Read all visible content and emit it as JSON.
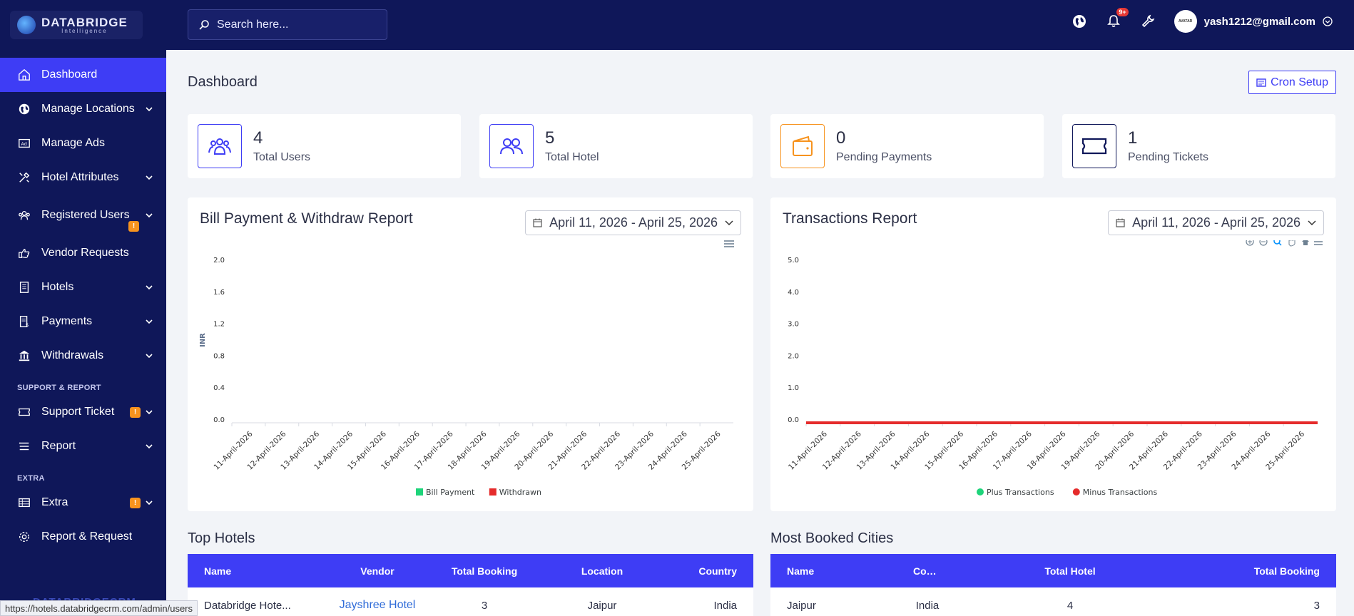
{
  "brand": {
    "name": "DATABRIDGE",
    "tagline": "Intelligence",
    "footer": "DATABRIDGECRM"
  },
  "search": {
    "placeholder": "Search here..."
  },
  "topbar": {
    "notification_badge": "9+",
    "user_email": "yash1212@gmail.com",
    "avatar_text": "AVATAR"
  },
  "sidebar": {
    "items": [
      {
        "label": "Dashboard",
        "icon": "home-icon",
        "active": true,
        "chevron": false
      },
      {
        "label": "Manage Locations",
        "icon": "globe-icon",
        "chevron": true
      },
      {
        "label": "Manage Ads",
        "icon": "ad-icon",
        "chevron": false
      },
      {
        "label": "Hotel Attributes",
        "icon": "tools-icon",
        "chevron": true
      },
      {
        "label": "Registered Users",
        "icon": "users-icon",
        "chevron": true,
        "badge": "!"
      },
      {
        "label": "Vendor Requests",
        "icon": "hand-icon",
        "chevron": false
      },
      {
        "label": "Hotels",
        "icon": "building-icon",
        "chevron": true
      },
      {
        "label": "Payments",
        "icon": "receipt-icon",
        "chevron": true
      },
      {
        "label": "Withdrawals",
        "icon": "bank-icon",
        "chevron": true
      }
    ],
    "section_support": "SUPPORT & REPORT",
    "support_items": [
      {
        "label": "Support Ticket",
        "icon": "ticket-icon",
        "chevron": true,
        "badge": "!"
      },
      {
        "label": "Report",
        "icon": "list-icon",
        "chevron": true
      }
    ],
    "section_extra": "EXTRA",
    "extra_items": [
      {
        "label": "Extra",
        "icon": "table-icon",
        "chevron": true,
        "badge": "!"
      },
      {
        "label": "Report & Request",
        "icon": "gear-icon",
        "chevron": false
      }
    ]
  },
  "page": {
    "title": "Dashboard",
    "cron_label": "Cron Setup"
  },
  "stats": [
    {
      "value": "4",
      "label": "Total Users",
      "color": "#3e3df5",
      "icon": "users-group-icon"
    },
    {
      "value": "5",
      "label": "Total Hotel",
      "color": "#3e3df5",
      "icon": "users-pair-icon"
    },
    {
      "value": "0",
      "label": "Pending Payments",
      "color": "#f7931e",
      "icon": "wallet-icon"
    },
    {
      "value": "1",
      "label": "Pending Tickets",
      "color": "#0f1759",
      "icon": "ticket-icon"
    }
  ],
  "bill_report": {
    "title": "Bill Payment & Withdraw Report",
    "date_range": "April 11, 2026 - April 25, 2026"
  },
  "tx_report": {
    "title": "Transactions Report",
    "date_range": "April 11, 2026 - April 25, 2026"
  },
  "chart_data": [
    {
      "type": "bar",
      "title": "Bill Payment & Withdraw Report",
      "ylabel": "INR",
      "ylim": [
        0,
        2
      ],
      "yticks": [
        "0.0",
        "0.4",
        "0.8",
        "1.2",
        "1.6",
        "2.0"
      ],
      "categories": [
        "11-April-2026",
        "12-April-2026",
        "13-April-2026",
        "14-April-2026",
        "15-April-2026",
        "16-April-2026",
        "17-April-2026",
        "18-April-2026",
        "19-April-2026",
        "20-April-2026",
        "21-April-2026",
        "22-April-2026",
        "23-April-2026",
        "24-April-2026",
        "25-April-2026"
      ],
      "series": [
        {
          "name": "Bill Payment",
          "color": "#1ed47a",
          "values": [
            0,
            0,
            0,
            0,
            0,
            0,
            0,
            0,
            0,
            0,
            0,
            0,
            0,
            0,
            0
          ]
        },
        {
          "name": "Withdrawn",
          "color": "#e52b2b",
          "values": [
            0,
            0,
            0,
            0,
            0,
            0,
            0,
            0,
            0,
            0,
            0,
            0,
            0,
            0,
            0
          ]
        }
      ],
      "legend": "bottom"
    },
    {
      "type": "line",
      "title": "Transactions Report",
      "ylim": [
        0,
        5
      ],
      "yticks": [
        "0.0",
        "1.0",
        "2.0",
        "3.0",
        "4.0",
        "5.0"
      ],
      "categories": [
        "11-April-2026",
        "12-April-2026",
        "13-April-2026",
        "14-April-2026",
        "15-April-2026",
        "16-April-2026",
        "17-April-2026",
        "18-April-2026",
        "19-April-2026",
        "20-April-2026",
        "21-April-2026",
        "22-April-2026",
        "23-April-2026",
        "24-April-2026",
        "25-April-2026"
      ],
      "series": [
        {
          "name": "Plus Transactions",
          "color": "#1ed47a",
          "values": [
            0,
            0,
            0,
            0,
            0,
            0,
            0,
            0,
            0,
            0,
            0,
            0,
            0,
            0,
            0
          ]
        },
        {
          "name": "Minus Transactions",
          "color": "#e52b2b",
          "values": [
            0,
            0,
            0,
            0,
            0,
            0,
            0,
            0,
            0,
            0,
            0,
            0,
            0,
            0,
            0
          ]
        }
      ],
      "legend": "bottom"
    }
  ],
  "top_hotels": {
    "title": "Top Hotels",
    "headers": [
      "Name",
      "Vendor",
      "Total Booking",
      "Location",
      "Country"
    ],
    "rows": [
      [
        "Databridge Hote...",
        "Jayshree Hotel",
        "3",
        "Jaipur",
        "India"
      ]
    ]
  },
  "top_cities": {
    "title": "Most Booked Cities",
    "headers": [
      "Name",
      "Country",
      "Total Hotel",
      "Total Booking"
    ],
    "rows": [
      [
        "Jaipur",
        "India",
        "4",
        "3"
      ]
    ]
  },
  "status_url": "https://hotels.databridgecrm.com/admin/users"
}
